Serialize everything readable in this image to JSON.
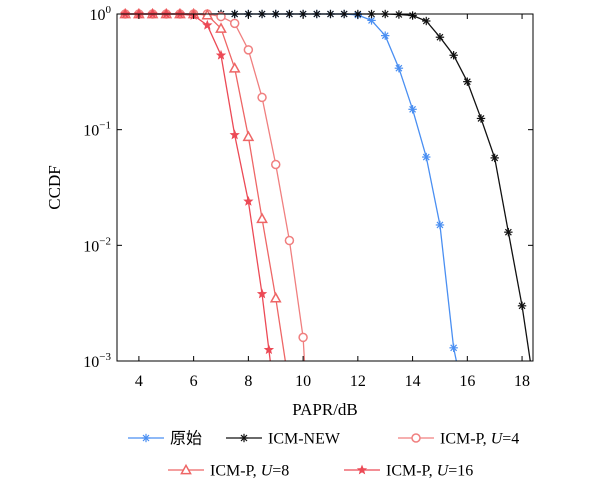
{
  "chart_data": {
    "type": "line",
    "xlabel": "PAPR/dB",
    "ylabel": "CCDF",
    "xscale": "linear",
    "yscale": "log",
    "xlim": [
      3.2,
      18.4
    ],
    "ylim": [
      0.001,
      1
    ],
    "grid": false,
    "legend_position": "bottom",
    "x_ticks": [
      4,
      6,
      8,
      10,
      12,
      14,
      16,
      18
    ],
    "x_tick_labels": [
      "4",
      "6",
      "8",
      "10",
      "12",
      "14",
      "16",
      "18"
    ],
    "y_ticks": [
      1,
      0.1,
      0.01,
      0.001
    ],
    "y_tick_labels": [
      {
        "base": "10",
        "exp": "0"
      },
      {
        "base": "10",
        "exp": "−1"
      },
      {
        "base": "10",
        "exp": "−2"
      },
      {
        "base": "10",
        "exp": "−3"
      }
    ],
    "series": [
      {
        "name": "原始",
        "name_parts": [
          "原始"
        ],
        "color": "#4a8ff2",
        "marker": "asterisk",
        "marker_filled": true,
        "points": [
          [
            3.5,
            1
          ],
          [
            4,
            1
          ],
          [
            4.5,
            1
          ],
          [
            5,
            1
          ],
          [
            5.5,
            1
          ],
          [
            6,
            1
          ],
          [
            6.5,
            1
          ],
          [
            7,
            1
          ],
          [
            7.5,
            1
          ],
          [
            8,
            1
          ],
          [
            8.5,
            1
          ],
          [
            9,
            1
          ],
          [
            9.5,
            1
          ],
          [
            10,
            1
          ],
          [
            10.5,
            1
          ],
          [
            11,
            1
          ],
          [
            11.5,
            1
          ],
          [
            12,
            0.98
          ],
          [
            12.5,
            0.88
          ],
          [
            13,
            0.65
          ],
          [
            13.5,
            0.34
          ],
          [
            14,
            0.15
          ],
          [
            14.5,
            0.058
          ],
          [
            15,
            0.015
          ],
          [
            15.5,
            0.0013
          ],
          [
            15.6,
            0.001
          ]
        ]
      },
      {
        "name": "ICM-NEW",
        "name_parts": [
          "ICM-NEW"
        ],
        "color": "#111111",
        "marker": "asterisk",
        "marker_filled": true,
        "points": [
          [
            3.5,
            1
          ],
          [
            4,
            1
          ],
          [
            4.5,
            1
          ],
          [
            5,
            1
          ],
          [
            5.5,
            1
          ],
          [
            6,
            1
          ],
          [
            6.5,
            1
          ],
          [
            7,
            1
          ],
          [
            7.5,
            1
          ],
          [
            8,
            1
          ],
          [
            8.5,
            1
          ],
          [
            9,
            1
          ],
          [
            9.5,
            1
          ],
          [
            10,
            1
          ],
          [
            10.5,
            1
          ],
          [
            11,
            1
          ],
          [
            11.5,
            1
          ],
          [
            12,
            1
          ],
          [
            12.5,
            1
          ],
          [
            13,
            1
          ],
          [
            13.5,
            0.99
          ],
          [
            14,
            0.97
          ],
          [
            14.5,
            0.87
          ],
          [
            15,
            0.63
          ],
          [
            15.5,
            0.44
          ],
          [
            16,
            0.26
          ],
          [
            16.5,
            0.125
          ],
          [
            17,
            0.057
          ],
          [
            17.5,
            0.013
          ],
          [
            18,
            0.003
          ],
          [
            18.3,
            0.001
          ]
        ]
      },
      {
        "name": "ICM-P, U=4",
        "name_parts": [
          "ICM-P, ",
          "U",
          "=4"
        ],
        "color": "#f07f7f",
        "marker": "circle",
        "marker_filled": false,
        "points": [
          [
            3.5,
            1
          ],
          [
            4,
            1
          ],
          [
            4.5,
            1
          ],
          [
            5,
            1
          ],
          [
            5.5,
            1
          ],
          [
            6,
            1
          ],
          [
            6.5,
            1
          ],
          [
            7,
            0.95
          ],
          [
            7.5,
            0.83
          ],
          [
            8,
            0.49
          ],
          [
            8.5,
            0.19
          ],
          [
            9,
            0.05
          ],
          [
            9.5,
            0.011
          ],
          [
            10,
            0.0016
          ],
          [
            10.05,
            0.001
          ]
        ]
      },
      {
        "name": "ICM-P, U=8",
        "name_parts": [
          "ICM-P, ",
          "U",
          "=8"
        ],
        "color": "#ee6666",
        "marker": "triangle",
        "marker_filled": false,
        "points": [
          [
            3.5,
            1
          ],
          [
            4,
            1
          ],
          [
            4.5,
            1
          ],
          [
            5,
            1
          ],
          [
            5.5,
            1
          ],
          [
            6,
            1
          ],
          [
            6.5,
            0.98
          ],
          [
            7,
            0.75
          ],
          [
            7.5,
            0.34
          ],
          [
            8,
            0.087
          ],
          [
            8.5,
            0.017
          ],
          [
            9,
            0.0035
          ],
          [
            9.35,
            0.001
          ]
        ]
      },
      {
        "name": "ICM-P, U=16",
        "name_parts": [
          "ICM-P, ",
          "U",
          "=16"
        ],
        "color": "#ec4a56",
        "marker": "star",
        "marker_filled": true,
        "points": [
          [
            3.5,
            1
          ],
          [
            4,
            1
          ],
          [
            4.5,
            1
          ],
          [
            5,
            1
          ],
          [
            5.5,
            1
          ],
          [
            6,
            0.97
          ],
          [
            6.5,
            0.8
          ],
          [
            7,
            0.44
          ],
          [
            7.5,
            0.09
          ],
          [
            8,
            0.024
          ],
          [
            8.5,
            0.0038
          ],
          [
            8.75,
            0.00125
          ],
          [
            8.8,
            0.001
          ]
        ]
      }
    ]
  }
}
